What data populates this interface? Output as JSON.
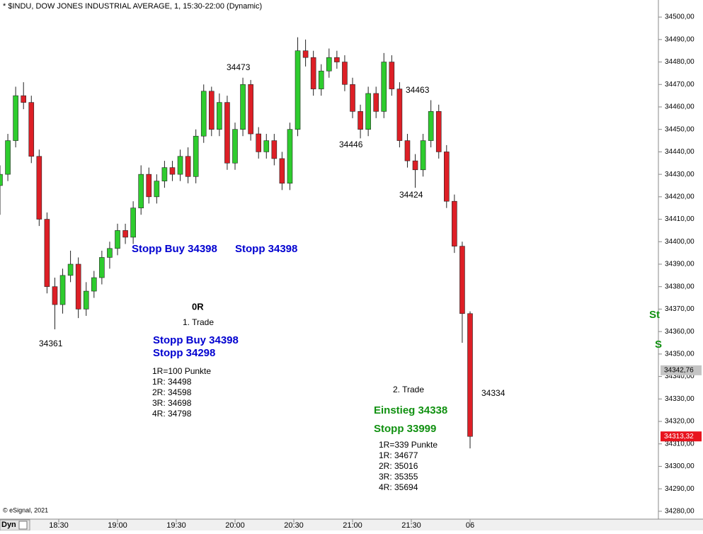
{
  "chart_data": {
    "type": "candlestick",
    "title": "* $INDU, DOW JONES INDUSTRIAL AVERAGE, 1, 15:30-22:00 (Dynamic)",
    "copyright": "© eSignal, 2021",
    "mode_label": "Dyn",
    "up_color": "#2ecc2e",
    "down_color": "#dd1f26",
    "x": [
      "18:00",
      "18:04",
      "18:08",
      "18:12",
      "18:16",
      "18:20",
      "18:24",
      "18:28",
      "18:32",
      "18:36",
      "18:40",
      "18:44",
      "18:48",
      "18:52",
      "18:56",
      "19:00",
      "19:04",
      "19:08",
      "19:12",
      "19:16",
      "19:20",
      "19:24",
      "19:28",
      "19:32",
      "19:36",
      "19:40",
      "19:44",
      "19:48",
      "19:52",
      "19:56",
      "20:00",
      "20:04",
      "20:08",
      "20:12",
      "20:16",
      "20:20",
      "20:24",
      "20:28",
      "20:32",
      "20:36",
      "20:40",
      "20:44",
      "20:48",
      "20:52",
      "20:56",
      "21:00",
      "21:04",
      "21:08",
      "21:12",
      "21:16",
      "21:20",
      "21:24",
      "21:28",
      "21:32",
      "21:36",
      "21:40",
      "21:44",
      "21:48",
      "21:52",
      "21:56",
      "22:00"
    ],
    "open": [
      34425,
      34430,
      34445,
      34465,
      34462,
      34438,
      34410,
      34380,
      34372,
      34385,
      34390,
      34370,
      34378,
      34384,
      34393,
      34397,
      34405,
      34402,
      34415,
      34430,
      34420,
      34427,
      34433,
      34430,
      34438,
      34429,
      34447,
      34467,
      34450,
      34462,
      34435,
      34450,
      34470,
      34448,
      34440,
      34445,
      34437,
      34426,
      34450,
      34485,
      34482,
      34468,
      34476,
      34482,
      34480,
      34470,
      34458,
      34450,
      34466,
      34458,
      34480,
      34468,
      34445,
      34436,
      34432,
      34445,
      34458,
      34440,
      34418,
      34398,
      34368
    ],
    "high": [
      34434,
      34448,
      34469,
      34471,
      34465,
      34441,
      34413,
      34384,
      34388,
      34396,
      34393,
      34382,
      34387,
      34396,
      34400,
      34408,
      34408,
      34418,
      34434,
      34433,
      34430,
      34436,
      34436,
      34441,
      34442,
      34450,
      34470,
      34469,
      34466,
      34465,
      34453,
      34473,
      34472,
      34451,
      34448,
      34448,
      34440,
      34453,
      34491,
      34490,
      34485,
      34479,
      34486,
      34485,
      34483,
      34473,
      34461,
      34469,
      34469,
      34484,
      34483,
      34471,
      34448,
      34439,
      34448,
      34463,
      34461,
      34443,
      34421,
      34400,
      34369
    ],
    "low": [
      34412,
      34427,
      34442,
      34459,
      34435,
      34407,
      34377,
      34361,
      34368,
      34382,
      34366,
      34367,
      34375,
      34381,
      34388,
      34394,
      34399,
      34399,
      34412,
      34417,
      34417,
      34424,
      34427,
      34427,
      34426,
      34426,
      34444,
      34447,
      34447,
      34432,
      34432,
      34447,
      34445,
      34437,
      34437,
      34434,
      34423,
      34423,
      34447,
      34478,
      34465,
      34465,
      34473,
      34477,
      34467,
      34455,
      34446,
      34447,
      34455,
      34455,
      34465,
      34442,
      34433,
      34424,
      34429,
      34442,
      34437,
      34415,
      34395,
      34355,
      34308
    ],
    "close": [
      34430,
      34445,
      34465,
      34462,
      34438,
      34410,
      34380,
      34372,
      34385,
      34390,
      34370,
      34378,
      34384,
      34393,
      34397,
      34405,
      34402,
      34415,
      34430,
      34420,
      34427,
      34433,
      34430,
      34438,
      34429,
      34447,
      34467,
      34450,
      34462,
      34435,
      34450,
      34470,
      34448,
      34440,
      34445,
      34437,
      34426,
      34450,
      34485,
      34482,
      34468,
      34476,
      34482,
      34480,
      34470,
      34458,
      34450,
      34466,
      34458,
      34480,
      34468,
      34445,
      34436,
      34432,
      34445,
      34458,
      34440,
      34418,
      34398,
      34368,
      34313.32
    ],
    "xlim": [
      "18:00",
      "23:36"
    ],
    "xticks": [
      "18:30",
      "19:00",
      "19:30",
      "20:00",
      "20:30",
      "21:00",
      "21:30",
      {
        "value": "22:00",
        "label": "06"
      }
    ],
    "ylim": [
      34276.5,
      34507.6
    ],
    "yticks": [
      {
        "value": 34280,
        "label": "34280,00"
      },
      {
        "value": 34290,
        "label": "34290,00"
      },
      {
        "value": 34300,
        "label": "34300,00"
      },
      {
        "value": 34310,
        "label": "34310,00"
      },
      {
        "value": 34320,
        "label": "34320,00"
      },
      {
        "value": 34330,
        "label": "34330,00"
      },
      {
        "value": 34340,
        "label": "34340,00"
      },
      {
        "value": 34350,
        "label": "34350,00"
      },
      {
        "value": 34360,
        "label": "34360,00"
      },
      {
        "value": 34370,
        "label": "34370,00"
      },
      {
        "value": 34380,
        "label": "34380,00"
      },
      {
        "value": 34390,
        "label": "34390,00"
      },
      {
        "value": 34400,
        "label": "34400,00"
      },
      {
        "value": 34410,
        "label": "34410,00"
      },
      {
        "value": 34420,
        "label": "34420,00"
      },
      {
        "value": 34430,
        "label": "34430,00"
      },
      {
        "value": 34440,
        "label": "34440,00"
      },
      {
        "value": 34450,
        "label": "34450,00"
      },
      {
        "value": 34460,
        "label": "34460,00"
      },
      {
        "value": 34470,
        "label": "34470,00"
      },
      {
        "value": 34480,
        "label": "34480,00"
      },
      {
        "value": 34490,
        "label": "34490,00"
      },
      {
        "value": 34500,
        "label": "34500,00"
      }
    ],
    "price_tags": [
      {
        "value": 34342.76,
        "label": "34342,76",
        "color": "#c4c4c4"
      },
      {
        "value": 34313.32,
        "label": "34313,32",
        "color": "#e8141e"
      }
    ],
    "annotations": [
      "34473",
      "34463",
      "34446",
      "34424",
      "34361",
      "34334",
      "Stopp Buy 34398",
      "Stopp 34398",
      "0R",
      "1. Trade",
      "Stopp Buy 34398",
      "Stopp 34298",
      "1R=100 Punkte",
      "1R: 34498",
      "2R: 34598",
      "3R: 34698",
      "4R: 34798",
      "2. Trade",
      "Einstieg 34338",
      "Stopp 33999",
      "1R=339 Punkte",
      "1R: 34677",
      "2R: 35016",
      "3R: 35355",
      "4R: 35694",
      "St",
      "S"
    ]
  }
}
